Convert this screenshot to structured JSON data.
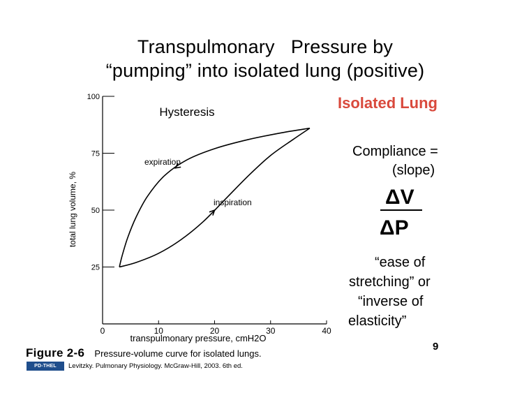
{
  "title": {
    "line1": "Transpulmonary   Pressure by",
    "line2": "“pumping” into isolated lung (positive)"
  },
  "side": {
    "heading": "Isolated Lung",
    "heading_color": "#d9493c",
    "compliance": "Compliance =",
    "slope": "(slope)",
    "numerator": "ΔV",
    "denominator": "ΔP",
    "ease1": "“ease of",
    "ease2": "stretching” or",
    "inverse1": "“inverse of",
    "inverse2": "elasticity”"
  },
  "page_number": "9",
  "figure": {
    "label": "Figure 2-6",
    "description": "Pressure-volume curve for isolated lungs."
  },
  "reference": {
    "logo_text": "PD-THEL",
    "text": "Levitzky. Pulmonary Physiology. McGraw-Hill, 2003. 6th ed."
  },
  "chart_data": {
    "type": "line",
    "title": "Hysteresis",
    "xlabel": "transpulmonary pressure, cmH2O",
    "ylabel": "total lung volume, %",
    "xlim": [
      0,
      40
    ],
    "ylim": [
      0,
      100
    ],
    "x_ticks": [
      "0",
      "10",
      "20",
      "30",
      "40"
    ],
    "y_ticks": [
      "25",
      "50",
      "75",
      "100"
    ],
    "grid": false,
    "series": [
      {
        "name": "inspiration",
        "x": [
          3,
          6,
          10,
          14,
          18,
          22,
          26,
          30,
          34,
          37
        ],
        "y": [
          25,
          27,
          31,
          37,
          45,
          55,
          65,
          74,
          81,
          86
        ]
      },
      {
        "name": "expiration",
        "x": [
          37,
          32,
          26,
          20,
          15,
          11,
          8,
          6,
          4.5,
          3.5,
          3
        ],
        "y": [
          86,
          84,
          81,
          77,
          72,
          65,
          56,
          47,
          38,
          30,
          25
        ]
      }
    ]
  }
}
